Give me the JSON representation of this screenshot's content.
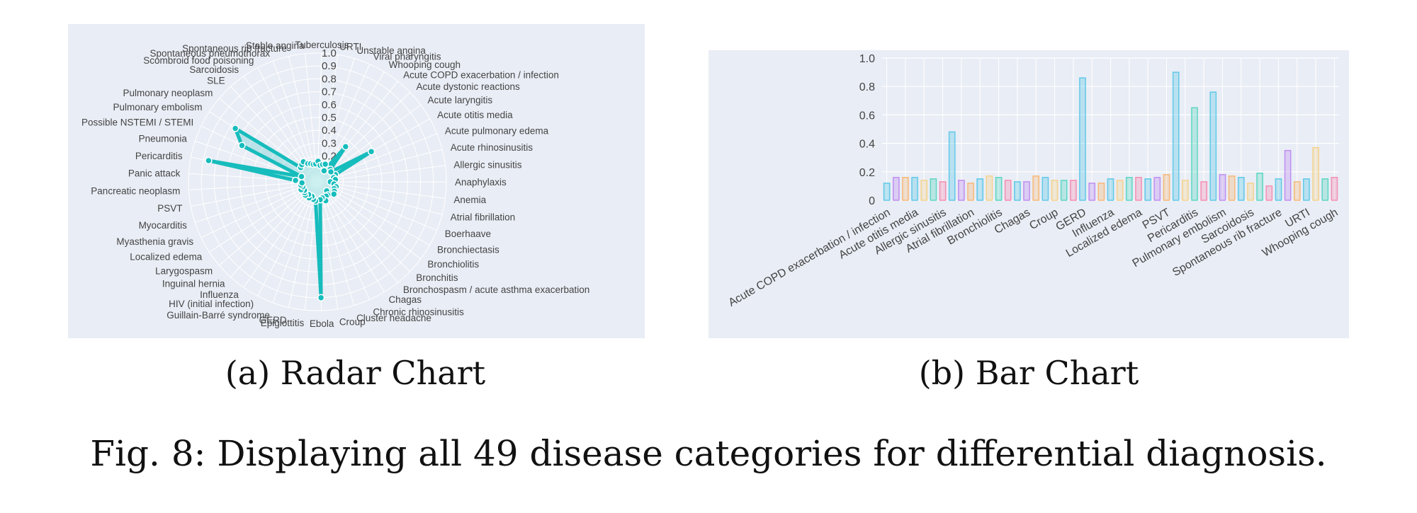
{
  "chart_data": [
    {
      "type": "radar",
      "title": "Radar Chart",
      "radial_ticks": [
        "0.1",
        "0.2",
        "0.3",
        "0.4",
        "0.5",
        "0.6",
        "0.7",
        "0.8",
        "0.9",
        "1.0"
      ],
      "rlim": [
        0,
        1
      ],
      "color": "#17bcbc",
      "categories": [
        "Acute pulmonary edema",
        "Acute rhinosinusitis",
        "Allergic sinusitis",
        "Anaphylaxis",
        "Anemia",
        "Atrial fibrillation",
        "Boerhaave",
        "Bronchiectasis",
        "Bronchiolitis",
        "Bronchitis",
        "Bronchospasm / acute asthma exacerbation",
        "Chagas",
        "Chronic rhinosinusitis",
        "Cluster headache",
        "Croup",
        "Ebola",
        "Epiglottitis",
        "GERD",
        "Guillain-Barré syndrome",
        "HIV (initial infection)",
        "Influenza",
        "Inguinal hernia",
        "Larygospasm",
        "Localized edema",
        "Myasthenia gravis",
        "Myocarditis",
        "PSVT",
        "Pancreatic neoplasm",
        "Panic attack",
        "Pericarditis",
        "Pneumonia",
        "Possible NSTEMI / STEMI",
        "Pulmonary embolism",
        "Pulmonary neoplasm",
        "SLE",
        "Sarcoidosis",
        "Scombroid food poisoning",
        "Spontaneous pneumothorax",
        "Spontaneous rib fracture",
        "Stable angina",
        "Tuberculosis",
        "URTI",
        "Unstable angina",
        "Viral pharyngitis",
        "Whooping cough",
        "Acute COPD exacerbation / infection",
        "Acute dystonic reactions",
        "Acute laryngitis",
        "Acute otitis media"
      ],
      "values": [
        0.15,
        0.13,
        0.14,
        0.1,
        0.13,
        0.15,
        0.14,
        0.15,
        0.16,
        0.1,
        0.13,
        0.13,
        0.16,
        0.13,
        0.14,
        0.9,
        0.15,
        0.14,
        0.12,
        0.14,
        0.12,
        0.14,
        0.13,
        0.12,
        0.14,
        0.12,
        0.13,
        0.12,
        0.17,
        0.86,
        0.13,
        0.65,
        0.76,
        0.17,
        0.18,
        0.19,
        0.16,
        0.15,
        0.14,
        0.14,
        0.16,
        0.13,
        0.14,
        0.15,
        0.1,
        0.35,
        0.14,
        0.13,
        0.48
      ]
    },
    {
      "type": "bar",
      "title": "Bar Chart",
      "ylim": [
        0,
        1
      ],
      "yticks": [
        "0",
        "0.2",
        "0.4",
        "0.6",
        "0.8",
        "1.0"
      ],
      "tick_labels": [
        "Acute COPD exacerbation / infection",
        "Acute otitis media",
        "Allergic sinusitis",
        "Atrial fibrillation",
        "Bronchiolitis",
        "Chagas",
        "Croup",
        "GERD",
        "Influenza",
        "Localized edema",
        "PSVT",
        "Pericarditis",
        "Pulmonary embolism",
        "Sarcoidosis",
        "Spontaneous rib fracture",
        "URTI",
        "Whooping cough"
      ],
      "values": [
        0.12,
        0.16,
        0.16,
        0.16,
        0.14,
        0.15,
        0.13,
        0.48,
        0.14,
        0.12,
        0.15,
        0.17,
        0.16,
        0.14,
        0.13,
        0.13,
        0.17,
        0.16,
        0.14,
        0.14,
        0.14,
        0.86,
        0.12,
        0.12,
        0.15,
        0.14,
        0.16,
        0.16,
        0.15,
        0.16,
        0.18,
        0.9,
        0.14,
        0.65,
        0.13,
        0.76,
        0.18,
        0.17,
        0.16,
        0.12,
        0.19,
        0.1,
        0.15,
        0.35,
        0.13,
        0.15,
        0.37,
        0.15,
        0.16
      ],
      "colors": [
        "#61c9e8",
        "#c08ff0",
        "#f7b97a",
        "#61c9e8",
        "#f6d38e",
        "#5fd6c4",
        "#f58fb4"
      ]
    }
  ],
  "captions": {
    "a": "(a) Radar Chart",
    "b": "(b) Bar Chart",
    "figure": "Fig. 8: Displaying all 49 disease categories for differential diagnosis."
  }
}
